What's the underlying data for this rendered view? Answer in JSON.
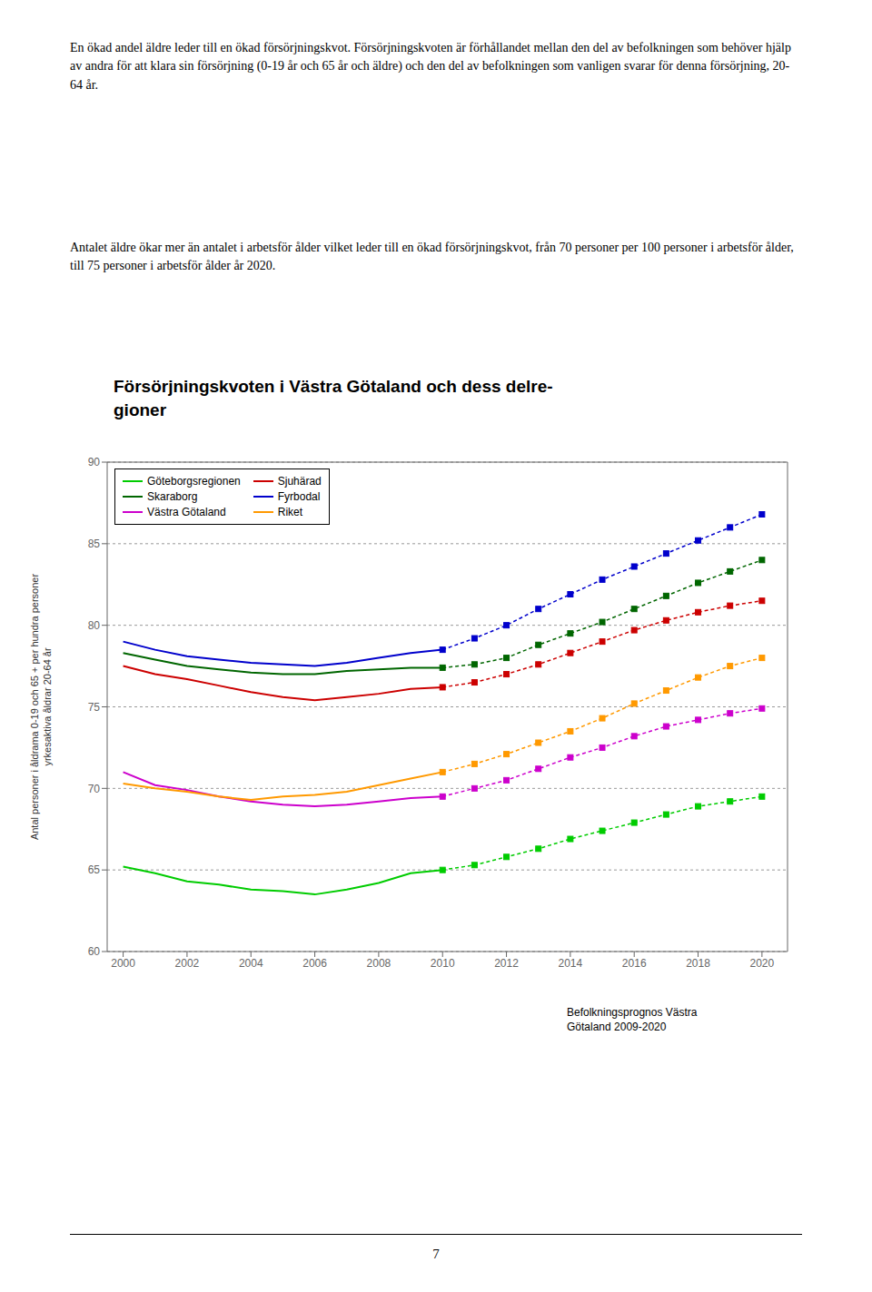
{
  "chart_data": {
    "type": "line",
    "title": "Försörjningskvoten i Västra Götaland och dess delre-\ngioner",
    "ylabel": "Antal personer i åldrama 0-19 och 65 + per hundra personer\nyrkesaktiva åldrar 20-64 år",
    "annotations": [
      "En ökad andel äldre leder till en ökad försörjningskvot. Försörjningskvoten är förhållandet mellan den del av befolkningen som behöver hjälp av andra för att klara sin försörjning (0-19 år och 65 år och äldre) och den del av befolkningen som vanligen svarar för denna försörjning, 20-64 år.",
      "Antalet äldre ökar mer än antalet i arbetsför ålder vilket leder till en ökad försörjningskvot, från 70 personer per 100 personer i arbetsför ålder, till 75 personer i arbetsför ålder år 2020.",
      "Befolkningsprognos Västra\nGötaland 2009-2020",
      "7"
    ],
    "x": [
      2000,
      2001,
      2002,
      2003,
      2004,
      2005,
      2006,
      2007,
      2008,
      2009,
      2010,
      2011,
      2012,
      2013,
      2014,
      2015,
      2016,
      2017,
      2018,
      2019,
      2020
    ],
    "series": [
      {
        "name": "Göteborgsregionen",
        "color": "#00cc00",
        "line_style": "solid",
        "values": [
          65.2,
          64.8,
          64.3,
          64.1,
          63.8,
          63.7,
          63.5,
          63.8,
          64.2,
          64.8,
          65.0,
          null,
          null,
          null,
          null,
          null,
          null,
          null,
          null,
          null,
          null
        ]
      },
      {
        "name": "Göteborgsregionen",
        "color": "#00cc00",
        "line_style": "dashed",
        "marker": "square",
        "values": [
          null,
          null,
          null,
          null,
          null,
          null,
          null,
          null,
          null,
          null,
          65.0,
          65.3,
          65.8,
          66.3,
          66.9,
          67.4,
          67.9,
          68.4,
          68.9,
          69.2,
          69.5
        ]
      },
      {
        "name": "Sjuhärad",
        "color": "#cc0000",
        "line_style": "solid",
        "values": [
          77.5,
          77.0,
          76.7,
          76.3,
          75.9,
          75.6,
          75.4,
          75.6,
          75.8,
          76.1,
          76.2,
          null,
          null,
          null,
          null,
          null,
          null,
          null,
          null,
          null,
          null
        ]
      },
      {
        "name": "Sjuhärad",
        "color": "#cc0000",
        "line_style": "dashed",
        "marker": "square",
        "values": [
          null,
          null,
          null,
          null,
          null,
          null,
          null,
          null,
          null,
          null,
          76.2,
          76.5,
          77.0,
          77.6,
          78.3,
          79.0,
          79.7,
          80.3,
          80.8,
          81.2,
          81.5
        ]
      },
      {
        "name": "Skaraborg",
        "color": "#006600",
        "line_style": "solid",
        "values": [
          78.3,
          77.9,
          77.5,
          77.3,
          77.1,
          77.0,
          77.0,
          77.2,
          77.3,
          77.4,
          77.4,
          null,
          null,
          null,
          null,
          null,
          null,
          null,
          null,
          null,
          null
        ]
      },
      {
        "name": "Skaraborg",
        "color": "#006600",
        "line_style": "dashed",
        "marker": "square",
        "values": [
          null,
          null,
          null,
          null,
          null,
          null,
          null,
          null,
          null,
          null,
          77.4,
          77.6,
          78.0,
          78.8,
          79.5,
          80.2,
          81.0,
          81.8,
          82.6,
          83.3,
          84.0
        ]
      },
      {
        "name": "Fyrbodal",
        "color": "#0000cc",
        "line_style": "solid",
        "values": [
          79.0,
          78.5,
          78.1,
          77.9,
          77.7,
          77.6,
          77.5,
          77.7,
          78.0,
          78.3,
          78.5,
          null,
          null,
          null,
          null,
          null,
          null,
          null,
          null,
          null,
          null
        ]
      },
      {
        "name": "Fyrbodal",
        "color": "#0000cc",
        "line_style": "dashed",
        "marker": "square",
        "values": [
          null,
          null,
          null,
          null,
          null,
          null,
          null,
          null,
          null,
          null,
          78.5,
          79.2,
          80.0,
          81.0,
          81.9,
          82.8,
          83.6,
          84.4,
          85.2,
          86.0,
          86.8
        ]
      },
      {
        "name": "Västra Götaland",
        "color": "#cc00cc",
        "line_style": "solid",
        "values": [
          71.0,
          70.2,
          69.9,
          69.5,
          69.2,
          69.0,
          68.9,
          69.0,
          69.2,
          69.4,
          69.5,
          null,
          null,
          null,
          null,
          null,
          null,
          null,
          null,
          null,
          null
        ]
      },
      {
        "name": "Västra Götaland",
        "color": "#cc00cc",
        "line_style": "dashed",
        "marker": "square",
        "values": [
          null,
          null,
          null,
          null,
          null,
          null,
          null,
          null,
          null,
          null,
          69.5,
          70.0,
          70.5,
          71.2,
          71.9,
          72.5,
          73.2,
          73.8,
          74.2,
          74.6,
          74.9
        ]
      },
      {
        "name": "Riket",
        "color": "#ff9900",
        "line_style": "solid",
        "values": [
          70.3,
          70.0,
          69.8,
          69.5,
          69.3,
          69.5,
          69.6,
          69.8,
          70.2,
          70.6,
          71.0,
          null,
          null,
          null,
          null,
          null,
          null,
          null,
          null,
          null,
          null
        ]
      },
      {
        "name": "Riket",
        "color": "#ff9900",
        "line_style": "dashed",
        "marker": "square",
        "values": [
          null,
          null,
          null,
          null,
          null,
          null,
          null,
          null,
          null,
          null,
          71.0,
          71.5,
          72.1,
          72.8,
          73.5,
          74.3,
          75.2,
          76.0,
          76.8,
          77.5,
          78.0
        ]
      }
    ],
    "xlim": [
      1999.5,
      2020.8
    ],
    "xticks": [
      2000,
      2002,
      2004,
      2006,
      2008,
      2010,
      2012,
      2014,
      2016,
      2018,
      2020
    ],
    "ylim": [
      60,
      90
    ],
    "yticks": [
      60,
      65,
      70,
      75,
      80,
      85,
      90
    ],
    "grid": true,
    "legend": "upper left"
  }
}
